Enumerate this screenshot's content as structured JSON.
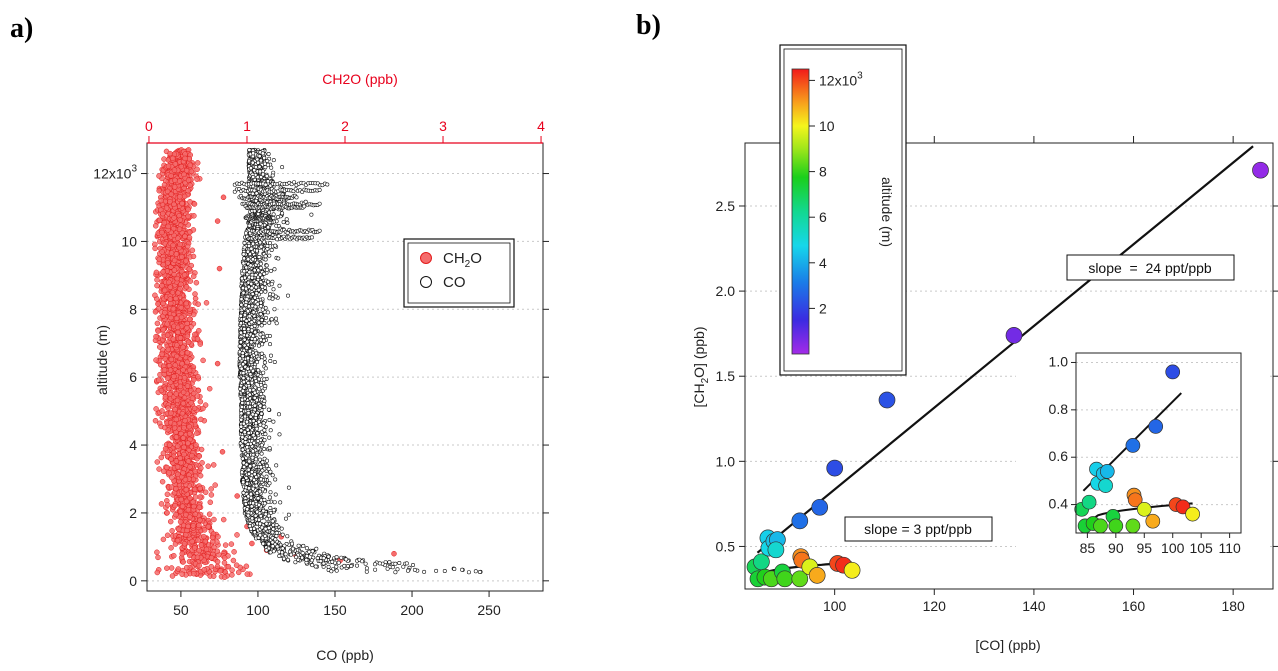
{
  "panel_a_label": "a)",
  "panel_b_label": "b)",
  "chart_data": [
    {
      "type": "scatter",
      "panel": "a",
      "xlabel": "CO (ppb)",
      "x2label": "CH2O (ppb)",
      "ylabel": "altitude (m)",
      "xlim": [
        28,
        285
      ],
      "x2lim": [
        -0.02,
        4.02
      ],
      "ylim": [
        -300,
        12900
      ],
      "xticks": [
        50,
        100,
        150,
        200,
        250
      ],
      "x2ticks": [
        0,
        1,
        2,
        3,
        4
      ],
      "yticks": [
        0,
        2000,
        4000,
        6000,
        8000,
        10000,
        12000
      ],
      "ytick_labels": [
        "0",
        "2",
        "4",
        "6",
        "8",
        "10",
        "12x10"
      ],
      "ytick_top_superscript": "3",
      "grid": "horizontal dotted",
      "legend": [
        "CH2O",
        "CO"
      ],
      "legend_ch2o_base": "CH",
      "legend_ch2o_sub": "2",
      "legend_ch2o_tail": "O",
      "legend_placement": "upper-right",
      "series": [
        {
          "name": "CH2O",
          "axis": "top",
          "color": "#f56d6d",
          "edge": "#e21b1b",
          "altitude_m": [
            100,
            500,
            1000,
            1500,
            2000,
            2500,
            3000,
            4000,
            5000,
            6000,
            7000,
            8000,
            9000,
            10000,
            11000,
            12000,
            12700
          ],
          "median_ppb": [
            0.62,
            0.55,
            0.5,
            0.45,
            0.4,
            0.37,
            0.35,
            0.33,
            0.32,
            0.3,
            0.29,
            0.28,
            0.27,
            0.26,
            0.26,
            0.3,
            0.32
          ],
          "spread_ppb": [
            0.38,
            0.32,
            0.26,
            0.22,
            0.2,
            0.19,
            0.18,
            0.18,
            0.17,
            0.17,
            0.17,
            0.16,
            0.16,
            0.15,
            0.15,
            0.14,
            0.12
          ],
          "outliers": [
            [
              700,
              1.8
            ],
            [
              800,
              2.5
            ],
            [
              600,
              1.95
            ],
            [
              750,
              1.5
            ],
            [
              1300,
              1.35
            ],
            [
              900,
              1.2
            ],
            [
              1100,
              1.05
            ],
            [
              1600,
              1.0
            ],
            [
              2500,
              0.9
            ],
            [
              3800,
              0.75
            ],
            [
              6400,
              0.7
            ],
            [
              9200,
              0.72
            ],
            [
              10600,
              0.7
            ],
            [
              11300,
              0.76
            ]
          ]
        },
        {
          "name": "CO",
          "axis": "bottom",
          "color": "#ffffff",
          "edge": "#111111",
          "altitude_m": [
            300,
            400,
            500,
            600,
            700,
            800,
            1000,
            1200,
            1500,
            2000,
            2500,
            3000,
            3500,
            4000,
            5000,
            6000,
            7000,
            8000,
            9000,
            10000,
            10500,
            11000,
            11500,
            12000,
            12700
          ],
          "median_ppb": [
            180,
            160,
            150,
            135,
            125,
            118,
            110,
            104,
            99,
            95,
            94,
            93,
            93,
            92,
            92,
            91,
            91,
            92,
            93,
            95,
            97,
            100,
            98,
            97,
            96
          ],
          "spread_ppb": [
            95,
            75,
            60,
            45,
            35,
            30,
            22,
            18,
            16,
            14,
            14,
            14,
            13,
            13,
            12,
            12,
            12,
            13,
            14,
            15,
            17,
            18,
            17,
            12,
            8
          ],
          "streaks": [
            [
              11700,
              85,
              145
            ],
            [
              11500,
              85,
              140
            ],
            [
              11300,
              88,
              125
            ],
            [
              11100,
              90,
              140
            ],
            [
              10700,
              92,
              110
            ],
            [
              10300,
              95,
              140
            ],
            [
              10100,
              93,
              135
            ],
            [
              11000,
              92,
              130
            ]
          ]
        }
      ]
    },
    {
      "type": "scatter",
      "panel": "b",
      "xlabel": "[CO] (ppb)",
      "ylabel": "[CH2O] (ppb)",
      "ylabel_base": "[CH",
      "ylabel_sub": "2",
      "ylabel_tail": "O] (ppb)",
      "xlim": [
        82,
        188
      ],
      "ylim": [
        0.25,
        2.87
      ],
      "xticks": [
        100,
        120,
        140,
        160,
        180
      ],
      "yticks": [
        0.5,
        1.0,
        1.5,
        2.0,
        2.5
      ],
      "ytick_labels": [
        "0.5",
        "1.0",
        "1.5",
        "2.0",
        "2.5"
      ],
      "grid": "horizontal dotted",
      "colorbar": {
        "label": "altitude (m)",
        "ticks": [
          2000,
          4000,
          6000,
          8000,
          10000,
          12000
        ],
        "tick_labels": [
          "2",
          "4",
          "6",
          "8",
          "10",
          "12x10"
        ],
        "top_superscript": "3",
        "range": [
          0,
          12500
        ]
      },
      "points": [
        {
          "x": 84.0,
          "y": 0.38,
          "alt": 7000
        },
        {
          "x": 84.6,
          "y": 0.31,
          "alt": 7400
        },
        {
          "x": 85.3,
          "y": 0.41,
          "alt": 6400
        },
        {
          "x": 86.0,
          "y": 0.32,
          "alt": 7800
        },
        {
          "x": 86.6,
          "y": 0.55,
          "alt": 4600
        },
        {
          "x": 86.8,
          "y": 0.49,
          "alt": 4800
        },
        {
          "x": 87.3,
          "y": 0.31,
          "alt": 8200
        },
        {
          "x": 87.8,
          "y": 0.53,
          "alt": 4400
        },
        {
          "x": 88.5,
          "y": 0.54,
          "alt": 4200
        },
        {
          "x": 88.2,
          "y": 0.48,
          "alt": 5200
        },
        {
          "x": 89.5,
          "y": 0.35,
          "alt": 7300
        },
        {
          "x": 90.0,
          "y": 0.31,
          "alt": 8100
        },
        {
          "x": 93.0,
          "y": 0.65,
          "alt": 2900
        },
        {
          "x": 93.2,
          "y": 0.44,
          "alt": 11200
        },
        {
          "x": 93.4,
          "y": 0.42,
          "alt": 11500
        },
        {
          "x": 93.0,
          "y": 0.31,
          "alt": 8400
        },
        {
          "x": 95.0,
          "y": 0.38,
          "alt": 9700
        },
        {
          "x": 96.5,
          "y": 0.33,
          "alt": 10900
        },
        {
          "x": 97.0,
          "y": 0.73,
          "alt": 2700
        },
        {
          "x": 100.0,
          "y": 0.96,
          "alt": 2200
        },
        {
          "x": 100.6,
          "y": 0.4,
          "alt": 12000
        },
        {
          "x": 101.8,
          "y": 0.39,
          "alt": 12300
        },
        {
          "x": 103.5,
          "y": 0.36,
          "alt": 10100
        },
        {
          "x": 110.5,
          "y": 1.36,
          "alt": 2300
        },
        {
          "x": 136.0,
          "y": 1.74,
          "alt": 700
        },
        {
          "x": 185.5,
          "y": 2.71,
          "alt": 250
        }
      ],
      "fits": [
        {
          "x0": 84.5,
          "x1": 184.0,
          "slope_ppb_per_ppb": 0.024,
          "intercept": -1.565
        },
        {
          "x0": 86.0,
          "x1": 103.5,
          "slope_ppb_per_ppb": 0.003,
          "y_at_x0": 0.34
        }
      ],
      "annotations": [
        "slope  =  24 ppt/ppb",
        "slope = 3 ppt/ppb"
      ],
      "inset": {
        "xlim": [
          83,
          112
        ],
        "ylim": [
          0.28,
          1.04
        ],
        "xticks": [
          85,
          90,
          95,
          100,
          105,
          110
        ],
        "yticks": [
          0.4,
          0.6,
          0.8,
          1.0
        ],
        "ytick_labels": [
          "0.4",
          "0.6",
          "0.8",
          "1.0"
        ],
        "x_max_point": 106
      }
    }
  ]
}
